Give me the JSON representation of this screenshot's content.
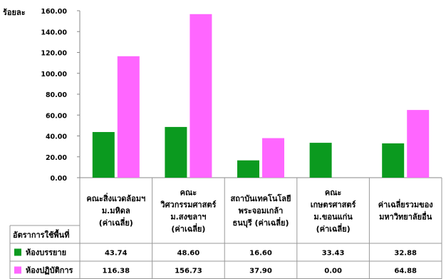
{
  "chart_data": {
    "type": "bar",
    "ylabel": "ร้อยละ",
    "ylim": [
      0,
      160
    ],
    "yticks": [
      "0.00",
      "20.00",
      "40.00",
      "60.00",
      "80.00",
      "100.00",
      "120.00",
      "140.00",
      "160.00"
    ],
    "categories": [
      [
        "คณะสิ่งแวดล้อมฯ",
        "ม.มหิดล",
        "(ค่าเฉลี่ย)"
      ],
      [
        "คณะ",
        "วิศวกรรมศาสตร์",
        "ม.สงขลาฯ",
        "(ค่าเฉลี่ย)"
      ],
      [
        "สถาบันเทคโนโลยี",
        "พระจอมเกล้า",
        "ธนบุรี (ค่าเฉลี่ย)"
      ],
      [
        "คณะ",
        "เกษตรศาสตร์",
        "ม.ขอนแก่น",
        "(ค่าเฉลี่ย)"
      ],
      [
        "ค่าเฉลี่ยรวมของ",
        "มหาวิทยาลัยอื่น"
      ]
    ],
    "table_header": "อัตราการใช้พื้นที่",
    "series": [
      {
        "name": "ห้องบรรยาย",
        "color": "#0b9a1f",
        "values": [
          43.74,
          48.6,
          16.6,
          33.43,
          32.88
        ],
        "labels": [
          "43.74",
          "48.60",
          "16.60",
          "33.43",
          "32.88"
        ]
      },
      {
        "name": "ห้องปฏิบัติการ",
        "color": "#ff66ff",
        "values": [
          116.38,
          156.73,
          37.9,
          0.0,
          64.88
        ],
        "labels": [
          "116.38",
          "156.73",
          "37.90",
          "0.00",
          "64.88"
        ]
      }
    ],
    "grid": false
  }
}
